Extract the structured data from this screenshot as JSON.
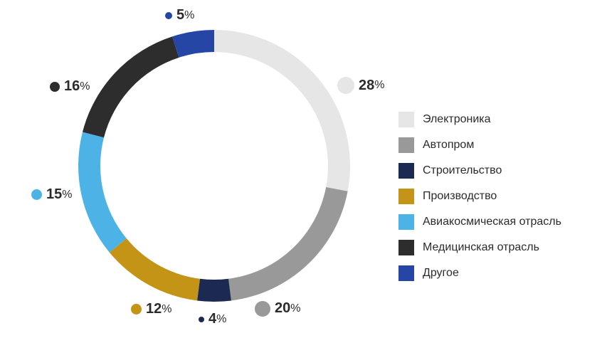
{
  "chart_data": {
    "type": "pie",
    "categories": [
      "Электроника",
      "Автопром",
      "Строительство",
      "Производство",
      "Авиакосмическая отрасль",
      "Медицинская отрасль",
      "Другое"
    ],
    "values": [
      28,
      20,
      4,
      12,
      15,
      16,
      5
    ],
    "labels": [
      "28",
      "20",
      "4",
      "12",
      "15",
      "16",
      "5"
    ],
    "unit": "%",
    "colors": [
      "#e6e6e6",
      "#999999",
      "#1c2a52",
      "#c49416",
      "#4db3e6",
      "#2d2d2d",
      "#2646a6"
    ],
    "order": "clockwise-from-top",
    "donut": true,
    "legend": "right"
  }
}
